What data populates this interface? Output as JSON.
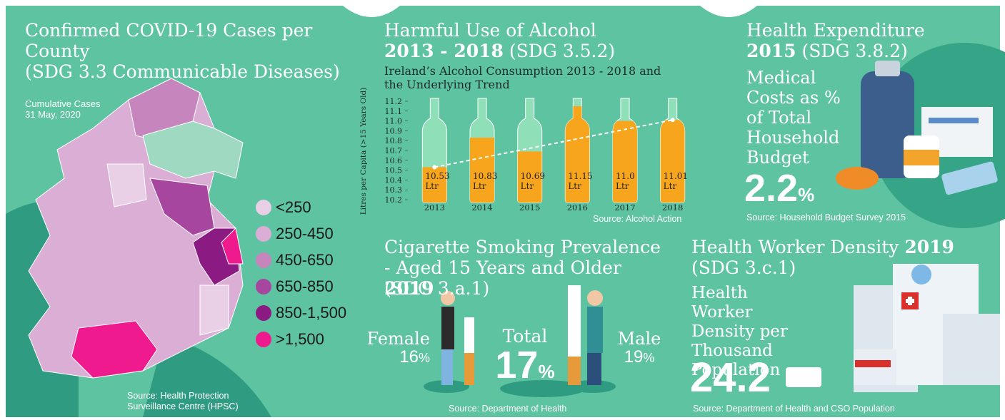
{
  "covid": {
    "title": "Confirmed COVID-19 Cases per County",
    "subtitle": "(SDG 3.3 Communicable Diseases)",
    "note": [
      "Cumulative Cases",
      "31 May, 2020"
    ],
    "legend": [
      {
        "label": "<250",
        "color": "#ead0e6"
      },
      {
        "label": "250-450",
        "color": "#dbaed5"
      },
      {
        "label": "450-650",
        "color": "#c685bd"
      },
      {
        "label": "650-850",
        "color": "#a6469f"
      },
      {
        "label": "850-1,500",
        "color": "#8b1a83"
      },
      {
        "label": ">1,500",
        "color": "#ee1a8e"
      }
    ],
    "source": "Source: Health Protection Surveillance Centre (HPSC)"
  },
  "chart_data": {
    "type": "bottle",
    "heading": "Harmful Use of Alcohol",
    "period": "2013 - 2018",
    "sdg": "(SDG 3.5.2)",
    "title": "Ireland’s Alcohol Consumption 2013 - 2018 and the Underlying Trend",
    "ylabel": "Litres per Capita (>15 Years Old)",
    "categories": [
      "2013",
      "2014",
      "2015",
      "2016",
      "2017",
      "2018"
    ],
    "values": [
      10.53,
      10.83,
      10.69,
      11.15,
      11.0,
      11.01
    ],
    "value_labels": [
      "10.53 Ltr",
      "10.83 Ltr",
      "10.69 Ltr",
      "11.15 Ltr",
      "11.0 Ltr",
      "11.01 Ltr"
    ],
    "color": "#f7a51c",
    "ylim": [
      10.2,
      11.2
    ],
    "yticks": [
      10.2,
      10.3,
      10.4,
      10.5,
      10.6,
      10.7,
      10.8,
      10.9,
      {
        "value": 11,
        "label": "11.0"
      },
      11.1,
      11.2
    ],
    "source": "Source: Alcohol Action"
  },
  "expenditure": {
    "heading": "Health Expenditure",
    "year": "2015",
    "sdg": "(SDG 3.8.2)",
    "label": "Medical Costs as % of Total Household Budget",
    "value": "2.2",
    "unit": "%",
    "source": "Source: Household Budget Survey 2015"
  },
  "smoking": {
    "heading": "Cigarette Smoking Prevalence - Aged 15 Years and Older",
    "year": "2019",
    "sdg": "(SDG 3.a.1)",
    "female": {
      "label": "Female",
      "value": "16",
      "unit": "%"
    },
    "total": {
      "label": "Total",
      "value": "17",
      "unit": "%"
    },
    "male": {
      "label": "Male",
      "value": "19",
      "unit": "%"
    },
    "source": "Source: Department of Health"
  },
  "workforce": {
    "heading": "Health Worker Density",
    "year": "2019",
    "sdg": "(SDG 3.c.1)",
    "label": "Health Worker Density per Thousand Population",
    "value": "24.2",
    "source": "Source: Department of Health and CSO Population"
  }
}
